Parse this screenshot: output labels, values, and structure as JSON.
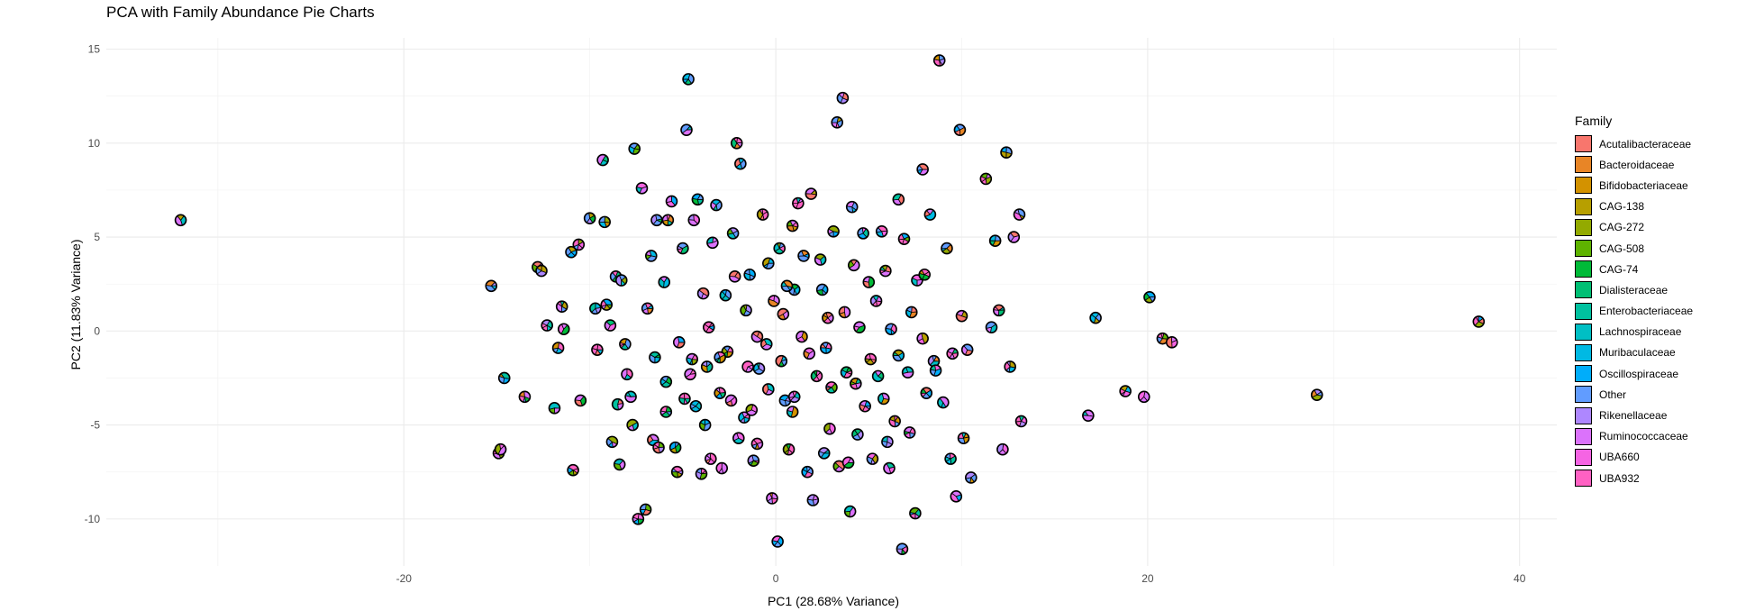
{
  "chart_data": {
    "type": "scatter",
    "title": "PCA with Family Abundance Pie Charts",
    "xlabel": "PC1 (28.68% Variance)",
    "ylabel": "PC2 (11.83% Variance)",
    "xlim": [
      -36,
      42
    ],
    "ylim": [
      -12.5,
      15.6
    ],
    "xticks": [
      -20,
      0,
      20,
      40
    ],
    "yticks": [
      -10,
      -5,
      0,
      5,
      10,
      15
    ],
    "xtick_labels": [
      "-20",
      "0",
      "20",
      "40"
    ],
    "ytick_labels": [
      "-10",
      "-5",
      "0",
      "5",
      "10",
      "15"
    ],
    "grid": true,
    "legend_position": "right",
    "legend_title": "Family",
    "families": [
      {
        "name": "Acutalibacteraceae",
        "color": "#F8766D"
      },
      {
        "name": "Bacteroidaceae",
        "color": "#E88526"
      },
      {
        "name": "Bifidobacteriaceae",
        "color": "#D39200"
      },
      {
        "name": "CAG-138",
        "color": "#B79F00"
      },
      {
        "name": "CAG-272",
        "color": "#93AA00"
      },
      {
        "name": "CAG-508",
        "color": "#5EB300"
      },
      {
        "name": "CAG-74",
        "color": "#00BA38"
      },
      {
        "name": "Dialisteraceae",
        "color": "#00BF74"
      },
      {
        "name": "Enterobacteriaceae",
        "color": "#00C19F"
      },
      {
        "name": "Lachnospiraceae",
        "color": "#00BFC4"
      },
      {
        "name": "Muribaculaceae",
        "color": "#00B9E3"
      },
      {
        "name": "Oscillospiraceae",
        "color": "#00ADFA"
      },
      {
        "name": "Other",
        "color": "#619CFF"
      },
      {
        "name": "Rikenellaceae",
        "color": "#AE87FF"
      },
      {
        "name": "Ruminococcaceae",
        "color": "#DB72FB"
      },
      {
        "name": "UBA660",
        "color": "#F564E3"
      },
      {
        "name": "UBA932",
        "color": "#FF61C3"
      }
    ],
    "points": [
      [
        -32.0,
        5.9
      ],
      [
        -15.3,
        2.4
      ],
      [
        -14.9,
        -6.5
      ],
      [
        -14.8,
        -6.3
      ],
      [
        -14.6,
        -2.5
      ],
      [
        -13.5,
        -3.5
      ],
      [
        -12.8,
        3.4
      ],
      [
        -12.6,
        3.2
      ],
      [
        -12.3,
        0.3
      ],
      [
        -11.9,
        -4.1
      ],
      [
        -11.7,
        -0.9
      ],
      [
        -11.5,
        1.3
      ],
      [
        -11.4,
        0.1
      ],
      [
        -11.0,
        4.2
      ],
      [
        -10.6,
        4.6
      ],
      [
        -10.5,
        -3.7
      ],
      [
        -10.0,
        6.0
      ],
      [
        -9.6,
        -1.0
      ],
      [
        -9.3,
        9.1
      ],
      [
        -9.2,
        5.8
      ],
      [
        -9.1,
        1.4
      ],
      [
        -8.9,
        0.3
      ],
      [
        -8.8,
        -5.9
      ],
      [
        -8.6,
        2.9
      ],
      [
        -8.5,
        -3.9
      ],
      [
        -8.3,
        2.7
      ],
      [
        -8.1,
        -0.7
      ],
      [
        -7.8,
        -3.5
      ],
      [
        -7.6,
        9.7
      ],
      [
        -7.4,
        -10.0
      ],
      [
        -7.2,
        7.6
      ],
      [
        -7.0,
        -9.5
      ],
      [
        -6.9,
        1.2
      ],
      [
        -6.6,
        -5.8
      ],
      [
        -6.4,
        5.9
      ],
      [
        -6.3,
        -6.2
      ],
      [
        -6.0,
        2.6
      ],
      [
        -5.9,
        -2.7
      ],
      [
        -5.8,
        5.9
      ],
      [
        -5.6,
        6.9
      ],
      [
        -5.4,
        -6.2
      ],
      [
        -5.3,
        -7.5
      ],
      [
        -5.2,
        -0.6
      ],
      [
        -5.0,
        4.4
      ],
      [
        -4.9,
        -3.6
      ],
      [
        -4.8,
        10.7
      ],
      [
        -4.7,
        13.4
      ],
      [
        -4.5,
        -1.5
      ],
      [
        -4.4,
        5.9
      ],
      [
        -4.2,
        7.0
      ],
      [
        -4.0,
        -7.6
      ],
      [
        -3.9,
        2.0
      ],
      [
        -3.7,
        -1.9
      ],
      [
        -3.6,
        0.2
      ],
      [
        -3.4,
        4.7
      ],
      [
        -3.2,
        6.7
      ],
      [
        -3.0,
        -3.3
      ],
      [
        -2.9,
        -7.3
      ],
      [
        -2.7,
        1.9
      ],
      [
        -2.6,
        -1.1
      ],
      [
        -2.4,
        -3.7
      ],
      [
        -2.3,
        5.2
      ],
      [
        -2.1,
        10.0
      ],
      [
        -2.0,
        -5.7
      ],
      [
        -1.9,
        8.9
      ],
      [
        -1.7,
        -4.6
      ],
      [
        -1.5,
        -1.9
      ],
      [
        -1.4,
        3.0
      ],
      [
        -1.2,
        -6.9
      ],
      [
        -1.0,
        -0.3
      ],
      [
        -0.9,
        -2.0
      ],
      [
        -0.7,
        6.2
      ],
      [
        -0.5,
        -0.7
      ],
      [
        -0.4,
        3.6
      ],
      [
        -0.2,
        -8.9
      ],
      [
        -0.1,
        1.6
      ],
      [
        0.1,
        -11.2
      ],
      [
        0.2,
        4.4
      ],
      [
        0.4,
        0.9
      ],
      [
        0.5,
        -3.7
      ],
      [
        0.7,
        -6.3
      ],
      [
        0.9,
        -4.3
      ],
      [
        1.0,
        2.2
      ],
      [
        1.2,
        6.8
      ],
      [
        1.4,
        -0.3
      ],
      [
        1.5,
        4.0
      ],
      [
        1.7,
        -7.5
      ],
      [
        1.9,
        7.3
      ],
      [
        2.0,
        -9.0
      ],
      [
        2.2,
        -2.4
      ],
      [
        2.4,
        3.8
      ],
      [
        2.6,
        -6.5
      ],
      [
        2.8,
        0.7
      ],
      [
        2.9,
        -5.2
      ],
      [
        3.1,
        5.3
      ],
      [
        3.3,
        11.1
      ],
      [
        3.4,
        -7.2
      ],
      [
        3.6,
        12.4
      ],
      [
        3.8,
        -2.2
      ],
      [
        4.0,
        -9.6
      ],
      [
        4.1,
        6.6
      ],
      [
        4.3,
        -2.8
      ],
      [
        4.5,
        0.2
      ],
      [
        4.7,
        5.2
      ],
      [
        4.8,
        -4.0
      ],
      [
        5.0,
        2.6
      ],
      [
        5.2,
        -6.8
      ],
      [
        5.4,
        1.6
      ],
      [
        5.5,
        -2.4
      ],
      [
        5.7,
        5.3
      ],
      [
        5.9,
        3.2
      ],
      [
        6.1,
        -7.3
      ],
      [
        6.2,
        0.1
      ],
      [
        6.4,
        -4.8
      ],
      [
        6.6,
        7.0
      ],
      [
        6.8,
        -11.6
      ],
      [
        6.9,
        4.9
      ],
      [
        7.1,
        -2.2
      ],
      [
        7.3,
        1.0
      ],
      [
        7.5,
        -9.7
      ],
      [
        7.6,
        2.7
      ],
      [
        7.9,
        8.6
      ],
      [
        8.1,
        -3.3
      ],
      [
        8.3,
        6.2
      ],
      [
        8.5,
        -1.6
      ],
      [
        8.8,
        14.4
      ],
      [
        9.0,
        -3.8
      ],
      [
        9.2,
        4.4
      ],
      [
        9.5,
        -1.2
      ],
      [
        9.7,
        -8.8
      ],
      [
        9.9,
        10.7
      ],
      [
        10.1,
        -5.7
      ],
      [
        10.3,
        -1.0
      ],
      [
        10.5,
        -7.8
      ],
      [
        11.3,
        8.1
      ],
      [
        11.6,
        0.2
      ],
      [
        11.8,
        4.8
      ],
      [
        12.0,
        1.1
      ],
      [
        12.2,
        -6.3
      ],
      [
        12.4,
        9.5
      ],
      [
        12.6,
        -1.9
      ],
      [
        12.8,
        5.0
      ],
      [
        13.1,
        6.2
      ],
      [
        13.2,
        -4.8
      ],
      [
        16.8,
        -4.5
      ],
      [
        17.2,
        0.7
      ],
      [
        18.8,
        -3.2
      ],
      [
        19.8,
        -3.5
      ],
      [
        20.1,
        1.8
      ],
      [
        20.8,
        -0.4
      ],
      [
        21.3,
        -0.6
      ],
      [
        29.1,
        -3.4
      ],
      [
        37.8,
        0.5
      ],
      [
        -8.0,
        -2.3
      ],
      [
        -6.7,
        4.0
      ],
      [
        -5.9,
        -4.3
      ],
      [
        -4.6,
        -2.3
      ],
      [
        -3.8,
        -5.0
      ],
      [
        -3.0,
        -1.4
      ],
      [
        -2.2,
        2.9
      ],
      [
        -1.6,
        1.1
      ],
      [
        -1.0,
        -6.0
      ],
      [
        -0.4,
        -3.1
      ],
      [
        0.3,
        -1.6
      ],
      [
        1.0,
        -3.5
      ],
      [
        1.8,
        -1.2
      ],
      [
        2.5,
        2.2
      ],
      [
        3.0,
        -3.0
      ],
      [
        3.7,
        1.0
      ],
      [
        4.4,
        -5.5
      ],
      [
        5.1,
        -1.5
      ],
      [
        5.8,
        -3.6
      ],
      [
        6.6,
        -1.3
      ],
      [
        7.2,
        -5.4
      ],
      [
        7.9,
        -0.4
      ],
      [
        8.6,
        -2.1
      ],
      [
        9.4,
        -6.8
      ],
      [
        10.0,
        0.8
      ],
      [
        -9.7,
        1.2
      ],
      [
        -10.9,
        -7.4
      ],
      [
        -7.7,
        -5.0
      ],
      [
        -6.5,
        -1.4
      ],
      [
        -3.5,
        -6.8
      ],
      [
        -1.3,
        -4.2
      ],
      [
        0.6,
        2.4
      ],
      [
        2.7,
        -0.9
      ],
      [
        4.2,
        3.5
      ],
      [
        6.0,
        -5.9
      ],
      [
        8.0,
        3.0
      ],
      [
        -8.4,
        -7.1
      ],
      [
        -4.3,
        -4.0
      ],
      [
        0.9,
        5.6
      ],
      [
        3.9,
        -7.0
      ]
    ]
  }
}
